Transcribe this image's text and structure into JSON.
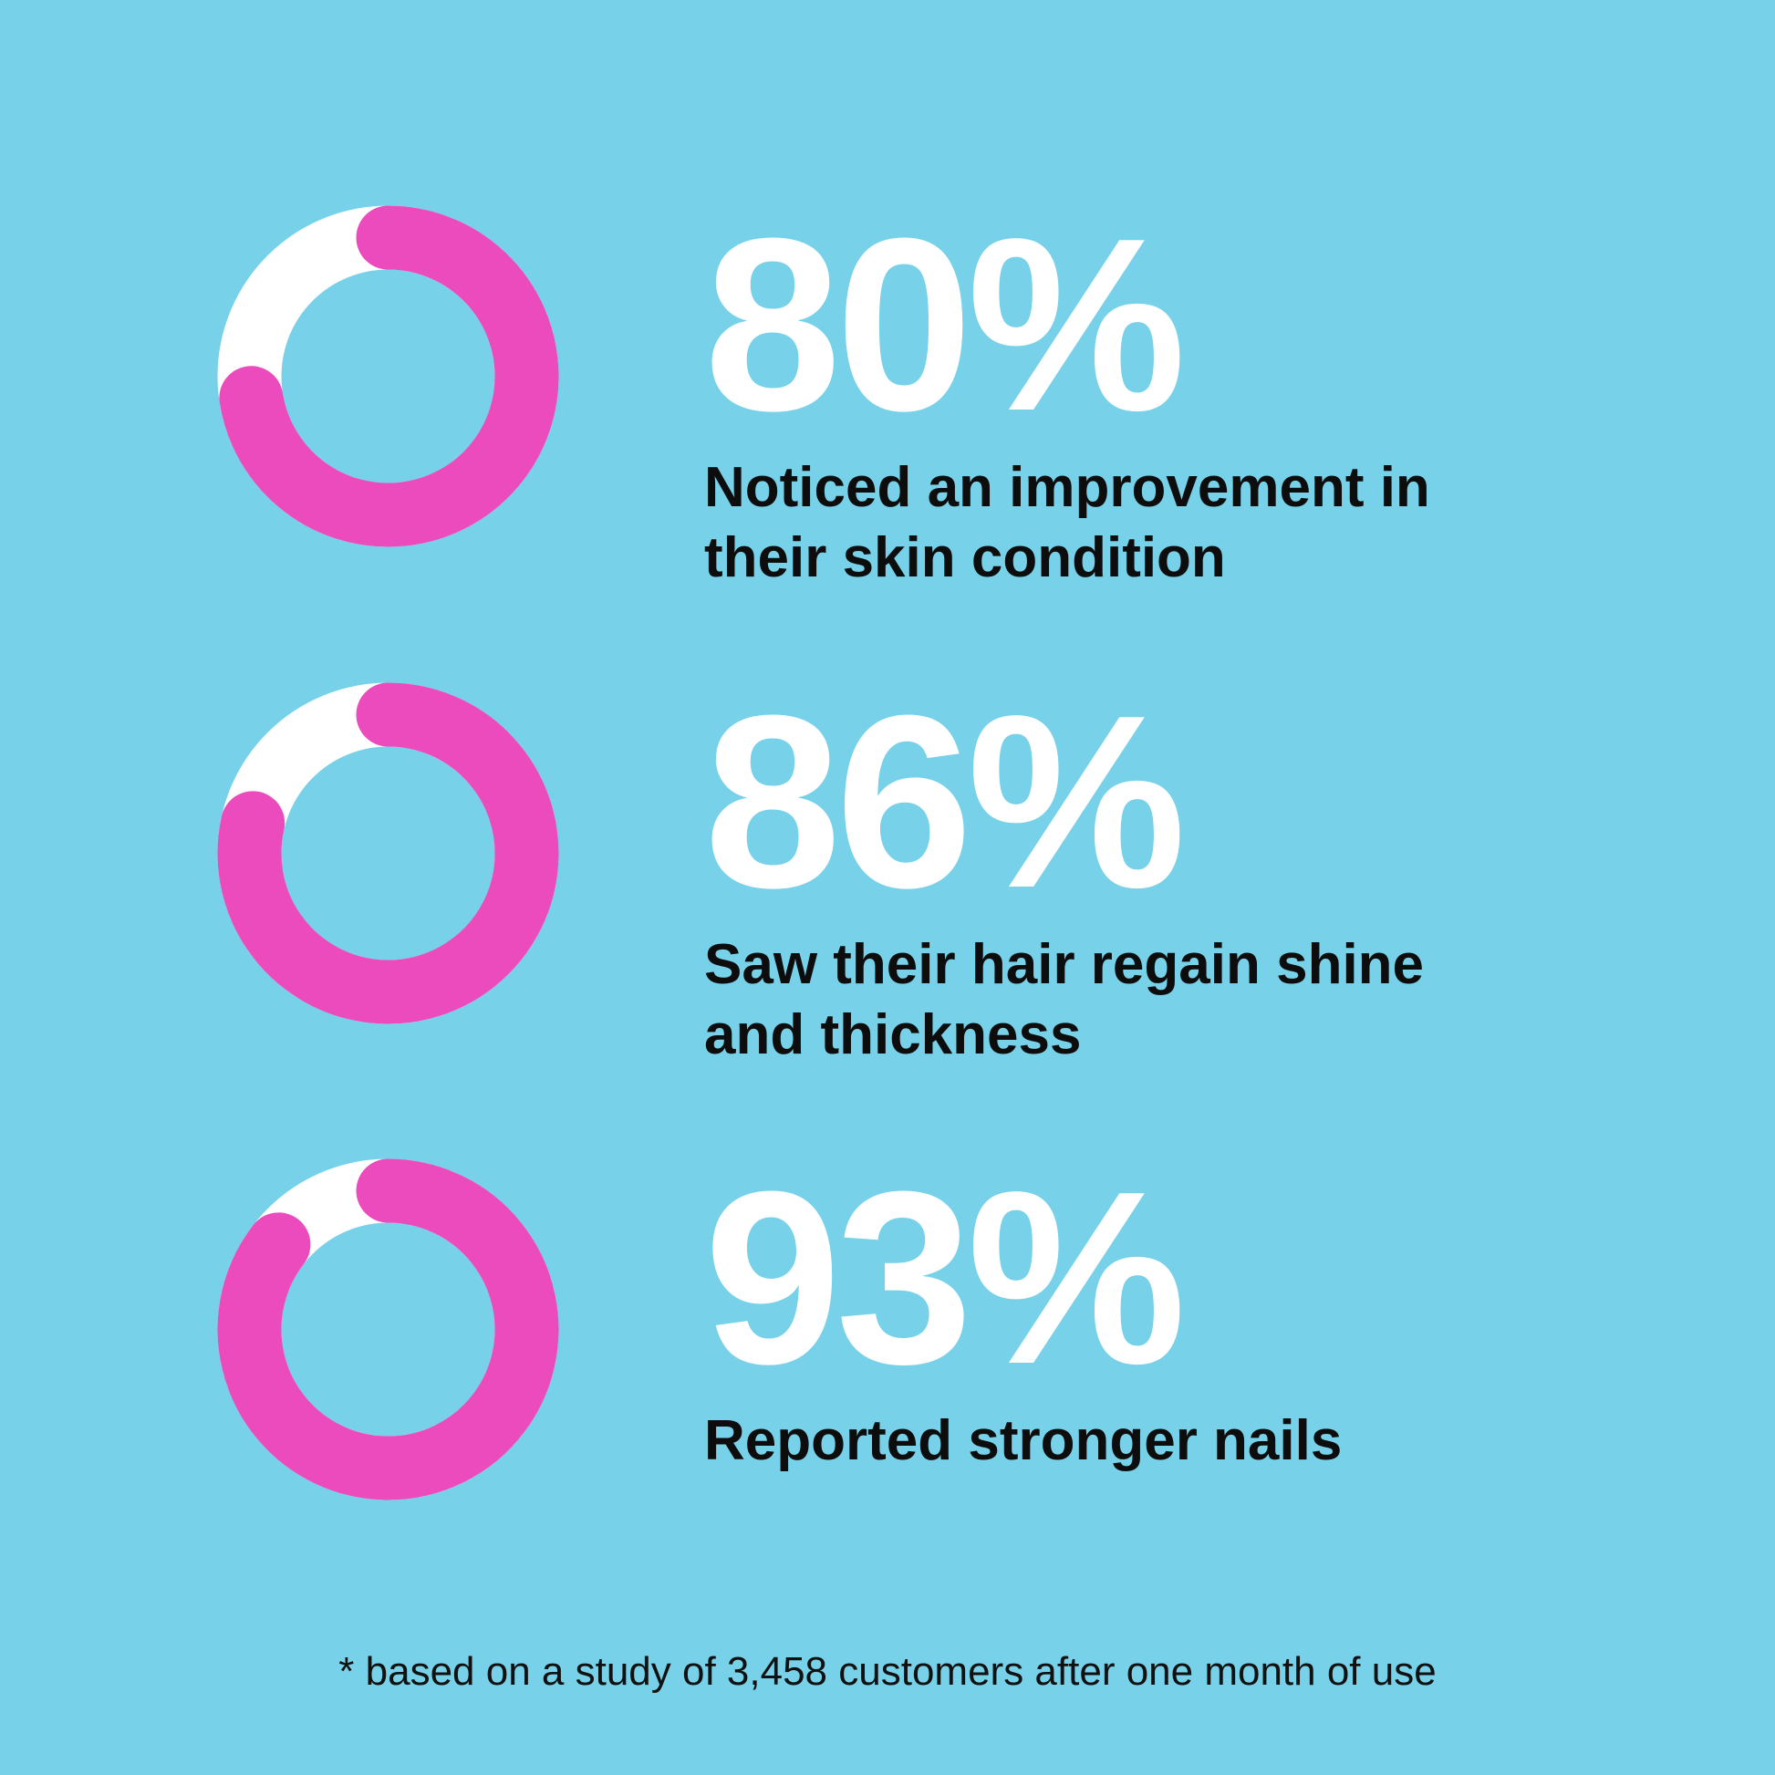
{
  "chart_data": {
    "type": "pie",
    "style": "donut",
    "colors": {
      "background": "#76d1e9",
      "filled": "#ec4bbd",
      "remaining": "#ffffff",
      "value_text": "#ffffff",
      "label_text": "#0d0d0d"
    },
    "items": [
      {
        "value": 80,
        "value_label": "80%",
        "label": "Noticed an improvement in their skin condition"
      },
      {
        "value": 86,
        "value_label": "86%",
        "label": "Saw their hair regain shine and thickness"
      },
      {
        "value": 93,
        "value_label": "93%",
        "label": "Reported stronger nails"
      }
    ],
    "footnote": "* based on a study of 3,458 customers after one month of use"
  }
}
